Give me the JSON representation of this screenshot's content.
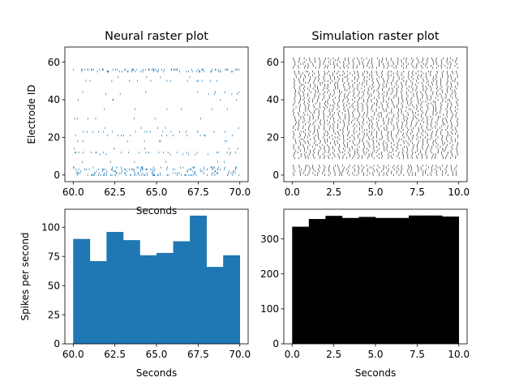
{
  "chart_data": [
    {
      "type": "scatter",
      "subtype": "raster",
      "title": "Neural raster plot",
      "xlabel": "Seconds",
      "ylabel": "Electrode ID",
      "xlim": [
        59.5,
        70.5
      ],
      "ylim": [
        -3.5,
        68
      ],
      "xticks": [
        60.0,
        62.5,
        65.0,
        67.5,
        70.0
      ],
      "xtick_labels": [
        "60.0",
        "62.5",
        "65.0",
        "67.5",
        "70.0"
      ],
      "yticks": [
        0,
        20,
        40,
        60
      ],
      "ytick_labels": [
        "0",
        "20",
        "40",
        "60"
      ],
      "marker_color": "#1f77b4",
      "t_range": [
        60,
        70
      ],
      "electrodes": [
        {
          "id": 56,
          "spikes": 60
        },
        {
          "id": 55,
          "spikes": 35
        },
        {
          "id": 52,
          "spikes": 4
        },
        {
          "id": 50,
          "spikes": 14
        },
        {
          "id": 44,
          "spikes": 6
        },
        {
          "id": 43,
          "spikes": 6
        },
        {
          "id": 40,
          "spikes": 5
        },
        {
          "id": 35,
          "spikes": 6
        },
        {
          "id": 30,
          "spikes": 7
        },
        {
          "id": 25,
          "spikes": 5
        },
        {
          "id": 23,
          "spikes": 18
        },
        {
          "id": 21,
          "spikes": 14
        },
        {
          "id": 18,
          "spikes": 8
        },
        {
          "id": 14,
          "spikes": 6
        },
        {
          "id": 12,
          "spikes": 24
        },
        {
          "id": 11,
          "spikes": 8
        },
        {
          "id": 7,
          "spikes": 6
        },
        {
          "id": 4,
          "spikes": 30
        },
        {
          "id": 3,
          "spikes": 45
        },
        {
          "id": 2,
          "spikes": 25
        },
        {
          "id": 1,
          "spikes": 40
        },
        {
          "id": 0,
          "spikes": 55
        }
      ]
    },
    {
      "type": "scatter",
      "subtype": "raster",
      "title": "Simulation raster plot",
      "xlabel": "",
      "ylabel": "",
      "xlim": [
        -0.5,
        10.5
      ],
      "ylim": [
        -3.5,
        68
      ],
      "xticks": [
        0.0,
        2.5,
        5.0,
        7.5,
        10.0
      ],
      "xtick_labels": [
        "0.0",
        "2.5",
        "5.0",
        "7.5",
        "10.0"
      ],
      "yticks": [
        0,
        20,
        40,
        60
      ],
      "ytick_labels": [
        "0",
        "20",
        "40",
        "60"
      ],
      "marker_color": "#000000",
      "t_range": [
        0,
        10
      ],
      "row_blocks": [
        [
          0,
          5
        ],
        [
          9,
          55
        ],
        [
          57,
          62
        ]
      ],
      "spikes_per_row": 34
    },
    {
      "type": "bar",
      "subtype": "histogram",
      "title": "",
      "xlabel": "Seconds",
      "ylabel": "Spikes per second",
      "xlim": [
        59.5,
        70.5
      ],
      "ylim": [
        0,
        115.5
      ],
      "xticks": [
        60.0,
        62.5,
        65.0,
        67.5,
        70.0
      ],
      "xtick_labels": [
        "60.0",
        "62.5",
        "65.0",
        "67.5",
        "70.0"
      ],
      "yticks": [
        0,
        25,
        50,
        75,
        100
      ],
      "ytick_labels": [
        "0",
        "25",
        "50",
        "75",
        "100"
      ],
      "bin_edges": [
        60,
        61,
        62,
        63,
        64,
        65,
        66,
        67,
        68,
        69,
        70
      ],
      "values": [
        90,
        71,
        96,
        89,
        76,
        78,
        88,
        110,
        66,
        76
      ],
      "color": "#1f77b4"
    },
    {
      "type": "bar",
      "subtype": "histogram",
      "title": "",
      "xlabel": "Seconds",
      "ylabel": "",
      "xlim": [
        -0.5,
        10.5
      ],
      "ylim": [
        0,
        385
      ],
      "xticks": [
        0.0,
        2.5,
        5.0,
        7.5,
        10.0
      ],
      "xtick_labels": [
        "0.0",
        "2.5",
        "5.0",
        "7.5",
        "10.0"
      ],
      "yticks": [
        0,
        100,
        200,
        300
      ],
      "ytick_labels": [
        "0",
        "100",
        "200",
        "300"
      ],
      "bin_edges": [
        0,
        1,
        2,
        3,
        4,
        5,
        6,
        7,
        8,
        9,
        10
      ],
      "values": [
        335,
        357,
        366,
        360,
        363,
        360,
        360,
        367,
        367,
        364
      ],
      "color": "#000000"
    }
  ]
}
